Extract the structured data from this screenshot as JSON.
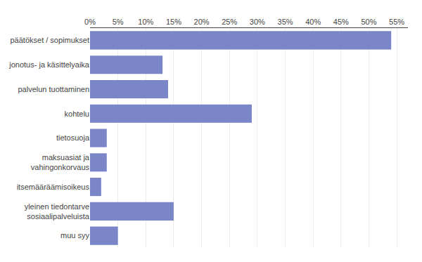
{
  "chart_data": {
    "type": "bar",
    "orientation": "horizontal",
    "categories": [
      "muu syy",
      "yleinen tiedontarve\nsosiaalipalveluista",
      "itsemääräämisoikeus",
      "maksuasiat ja\nvahingonkorvaus",
      "tietosuoja",
      "kohtelu",
      "palvelun tuottaminen",
      "jonotus- ja käsittelyaika",
      "päätökset / sopimukset"
    ],
    "values": [
      5,
      15,
      2,
      3,
      3,
      29,
      14,
      13,
      54
    ],
    "color": "#7B86C8",
    "xlim": [
      0,
      57
    ],
    "xticks": [
      {
        "value": 0,
        "label": "0%"
      },
      {
        "value": 5,
        "label": "5%"
      },
      {
        "value": 10,
        "label": "10%"
      },
      {
        "value": 15,
        "label": "15%"
      },
      {
        "value": 20,
        "label": "20%"
      },
      {
        "value": 25,
        "label": "25%"
      },
      {
        "value": 30,
        "label": "30%"
      },
      {
        "value": 35,
        "label": "35%"
      },
      {
        "value": 40,
        "label": "40%"
      },
      {
        "value": 45,
        "label": "45%"
      },
      {
        "value": 50,
        "label": "50%"
      },
      {
        "value": 55,
        "label": "55%"
      }
    ],
    "grid": true
  }
}
